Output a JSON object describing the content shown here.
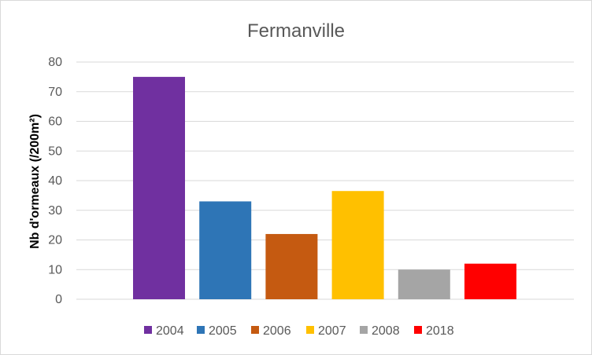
{
  "chart_data": {
    "type": "bar",
    "title": "Fermanville",
    "ylabel": "Nb d'ormeaux (/200m²)",
    "xlabel": "",
    "ylim": [
      0,
      80
    ],
    "yticks": [
      0,
      10,
      20,
      30,
      40,
      50,
      60,
      70,
      80
    ],
    "grid": true,
    "legend_position": "bottom",
    "series": [
      {
        "name": "2004",
        "value": 75,
        "color": "#7030A0"
      },
      {
        "name": "2005",
        "value": 33,
        "color": "#2E75B6"
      },
      {
        "name": "2006",
        "value": 22,
        "color": "#C55A11"
      },
      {
        "name": "2007",
        "value": 36.5,
        "color": "#FFC000"
      },
      {
        "name": "2008",
        "value": 10,
        "color": "#A5A5A5"
      },
      {
        "name": "2018",
        "value": 12,
        "color": "#FF0000"
      }
    ]
  }
}
